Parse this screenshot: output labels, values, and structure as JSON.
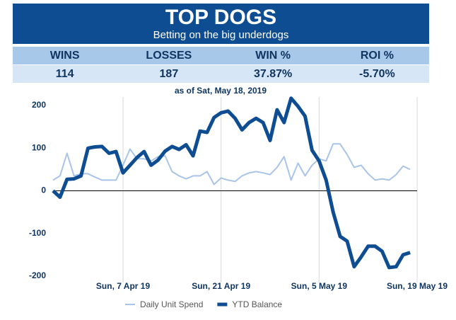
{
  "header": {
    "title": "TOP DOGS",
    "subtitle": "Betting on the big underdogs"
  },
  "stats": {
    "headers": [
      "WINS",
      "LOSSES",
      "WIN %",
      "ROI %"
    ],
    "values": [
      "114",
      "187",
      "37.87%",
      "-5.70%"
    ]
  },
  "chart_data": {
    "type": "line",
    "subtitle": "as of Sat, May 18, 2019",
    "x": [
      "2019-03-28",
      "2019-03-29",
      "2019-03-30",
      "2019-03-31",
      "2019-04-01",
      "2019-04-02",
      "2019-04-03",
      "2019-04-04",
      "2019-04-05",
      "2019-04-06",
      "2019-04-07",
      "2019-04-08",
      "2019-04-09",
      "2019-04-10",
      "2019-04-11",
      "2019-04-12",
      "2019-04-13",
      "2019-04-14",
      "2019-04-15",
      "2019-04-16",
      "2019-04-17",
      "2019-04-18",
      "2019-04-19",
      "2019-04-20",
      "2019-04-21",
      "2019-04-22",
      "2019-04-23",
      "2019-04-24",
      "2019-04-25",
      "2019-04-26",
      "2019-04-27",
      "2019-04-28",
      "2019-04-29",
      "2019-04-30",
      "2019-05-01",
      "2019-05-02",
      "2019-05-03",
      "2019-05-04",
      "2019-05-05",
      "2019-05-06",
      "2019-05-07",
      "2019-05-08",
      "2019-05-09",
      "2019-05-10",
      "2019-05-11",
      "2019-05-12",
      "2019-05-13",
      "2019-05-14",
      "2019-05-15",
      "2019-05-16",
      "2019-05-17",
      "2019-05-18"
    ],
    "series": [
      {
        "name": "Daily Unit Spend",
        "color": "#a9c4e8",
        "width": 2,
        "values": [
          25,
          35,
          88,
          35,
          40,
          40,
          32,
          25,
          25,
          25,
          60,
          98,
          75,
          75,
          70,
          80,
          82,
          45,
          35,
          28,
          35,
          35,
          45,
          15,
          30,
          25,
          22,
          35,
          42,
          45,
          42,
          38,
          55,
          80,
          25,
          65,
          35,
          60,
          75,
          70,
          110,
          110,
          85,
          55,
          60,
          40,
          25,
          28,
          25,
          38,
          58,
          50
        ]
      },
      {
        "name": "YTD Balance",
        "color": "#0f4d92",
        "width": 5,
        "values": [
          0,
          -15,
          27,
          28,
          35,
          100,
          103,
          104,
          88,
          92,
          42,
          60,
          78,
          92,
          60,
          72,
          93,
          104,
          97,
          108,
          82,
          140,
          137,
          172,
          183,
          187,
          170,
          143,
          160,
          170,
          160,
          118,
          190,
          160,
          217,
          198,
          175,
          95,
          70,
          25,
          -50,
          -107,
          -118,
          -178,
          -155,
          -130,
          -130,
          -142,
          -180,
          -178,
          -150,
          -145
        ]
      }
    ],
    "xlim": [
      "2019-03-28",
      "2019-05-19"
    ],
    "xticks": [
      {
        "value": "2019-04-07",
        "label": "Sun, 7 Apr 19"
      },
      {
        "value": "2019-04-21",
        "label": "Sun, 21 Apr 19"
      },
      {
        "value": "2019-05-05",
        "label": "Sun, 5 May 19"
      },
      {
        "value": "2019-05-19",
        "label": "Sun, 19 May 19"
      }
    ],
    "ylim": [
      -215,
      220
    ],
    "yticks": [
      -200,
      -100,
      0,
      100,
      200
    ],
    "grid": "x"
  }
}
